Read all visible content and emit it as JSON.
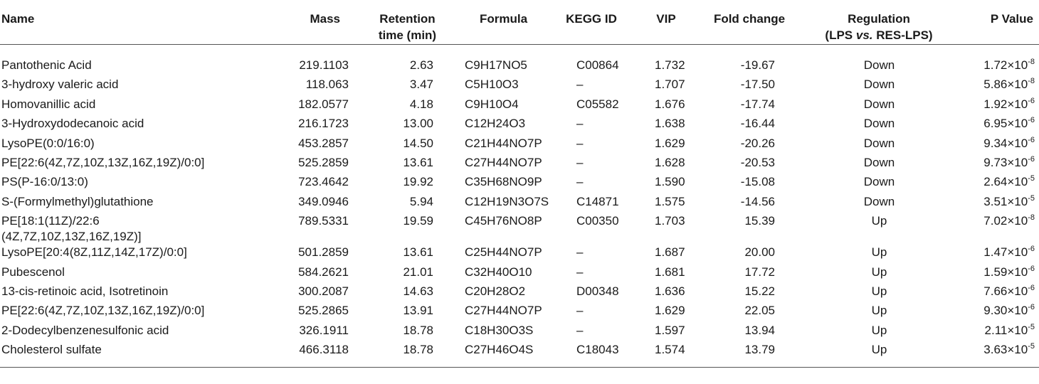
{
  "headers": {
    "name": "Name",
    "mass": "Mass",
    "rt_line1": "Retention",
    "rt_line2": "time (min)",
    "formula": "Formula",
    "kegg": "KEGG ID",
    "vip": "VIP",
    "fc": "Fold change",
    "reg_line1": "Regulation",
    "reg_line2_a": "(LPS ",
    "reg_line2_b": "vs.",
    "reg_line2_c": " RES-LPS)",
    "p": "P Value"
  },
  "rows": [
    {
      "name": "Pantothenic Acid",
      "mass": "219.1103",
      "rt": "2.63",
      "formula": "C9H17NO5",
      "kegg": "C00864",
      "vip": "1.732",
      "fc": "-19.67",
      "reg": "Down",
      "p_mant": "1.72×10",
      "p_exp": "-8"
    },
    {
      "name": "3-hydroxy valeric acid",
      "mass": "118.063",
      "rt": "3.47",
      "formula": "C5H10O3",
      "kegg": "–",
      "vip": "1.707",
      "fc": "-17.50",
      "reg": "Down",
      "p_mant": "5.86×10",
      "p_exp": "-8"
    },
    {
      "name": "Homovanillic acid",
      "mass": "182.0577",
      "rt": "4.18",
      "formula": "C9H10O4",
      "kegg": "C05582",
      "vip": "1.676",
      "fc": "-17.74",
      "reg": "Down",
      "p_mant": "1.92×10",
      "p_exp": "-6"
    },
    {
      "name": "3-Hydroxydodecanoic acid",
      "mass": "216.1723",
      "rt": "13.00",
      "formula": "C12H24O3",
      "kegg": "–",
      "vip": "1.638",
      "fc": "-16.44",
      "reg": "Down",
      "p_mant": "6.95×10",
      "p_exp": "-6"
    },
    {
      "name": "LysoPE(0:0/16:0)",
      "mass": "453.2857",
      "rt": "14.50",
      "formula": "C21H44NO7P",
      "kegg": "–",
      "vip": "1.629",
      "fc": "-20.26",
      "reg": "Down",
      "p_mant": "9.34×10",
      "p_exp": "-6"
    },
    {
      "name": "PE[22:6(4Z,7Z,10Z,13Z,16Z,19Z)/0:0]",
      "mass": "525.2859",
      "rt": "13.61",
      "formula": "C27H44NO7P",
      "kegg": "–",
      "vip": "1.628",
      "fc": "-20.53",
      "reg": "Down",
      "p_mant": "9.73×10",
      "p_exp": "-6"
    },
    {
      "name": "PS(P-16:0/13:0)",
      "mass": "723.4642",
      "rt": "19.92",
      "formula": "C35H68NO9P",
      "kegg": "–",
      "vip": "1.590",
      "fc": "-15.08",
      "reg": "Down",
      "p_mant": "2.64×10",
      "p_exp": "-5"
    },
    {
      "name": "S-(Formylmethyl)glutathione",
      "mass": "349.0946",
      "rt": "5.94",
      "formula": "C12H19N3O7S",
      "kegg": "C14871",
      "vip": "1.575",
      "fc": "-14.56",
      "reg": "Down",
      "p_mant": "3.51×10",
      "p_exp": "-5"
    },
    {
      "name": "PE[18:1(11Z)/22:6",
      "name2": "(4Z,7Z,10Z,13Z,16Z,19Z)]",
      "mass": "789.5331",
      "rt": "19.59",
      "formula": "C45H76NO8P",
      "kegg": "C00350",
      "vip": "1.703",
      "fc": "15.39",
      "reg": "Up",
      "p_mant": "7.02×10",
      "p_exp": "-8"
    },
    {
      "name": "LysoPE[20:4(8Z,11Z,14Z,17Z)/0:0]",
      "mass": "501.2859",
      "rt": "13.61",
      "formula": "C25H44NO7P",
      "kegg": "–",
      "vip": "1.687",
      "fc": "20.00",
      "reg": "Up",
      "p_mant": "1.47×10",
      "p_exp": "-6"
    },
    {
      "name": "Pubescenol",
      "mass": "584.2621",
      "rt": "21.01",
      "formula": "C32H40O10",
      "kegg": "–",
      "vip": "1.681",
      "fc": "17.72",
      "reg": "Up",
      "p_mant": "1.59×10",
      "p_exp": "-6"
    },
    {
      "name": "13-cis-retinoic acid, Isotretinoin",
      "mass": "300.2087",
      "rt": "14.63",
      "formula": "C20H28O2",
      "kegg": "D00348",
      "vip": "1.636",
      "fc": "15.22",
      "reg": "Up",
      "p_mant": "7.66×10",
      "p_exp": "-6"
    },
    {
      "name": "PE[22:6(4Z,7Z,10Z,13Z,16Z,19Z)/0:0]",
      "mass": "525.2865",
      "rt": "13.91",
      "formula": "C27H44NO7P",
      "kegg": "–",
      "vip": "1.629",
      "fc": "22.05",
      "reg": "Up",
      "p_mant": "9.30×10",
      "p_exp": "-6"
    },
    {
      "name": "2-Dodecylbenzenesulfonic acid",
      "mass": "326.1911",
      "rt": "18.78",
      "formula": "C18H30O3S",
      "kegg": "–",
      "vip": "1.597",
      "fc": "13.94",
      "reg": "Up",
      "p_mant": "2.11×10",
      "p_exp": "-5"
    },
    {
      "name": "Cholesterol sulfate",
      "mass": "466.3118",
      "rt": "18.78",
      "formula": "C27H46O4S",
      "kegg": "C18043",
      "vip": "1.574",
      "fc": "13.79",
      "reg": "Up",
      "p_mant": "3.63×10",
      "p_exp": "-5"
    }
  ]
}
